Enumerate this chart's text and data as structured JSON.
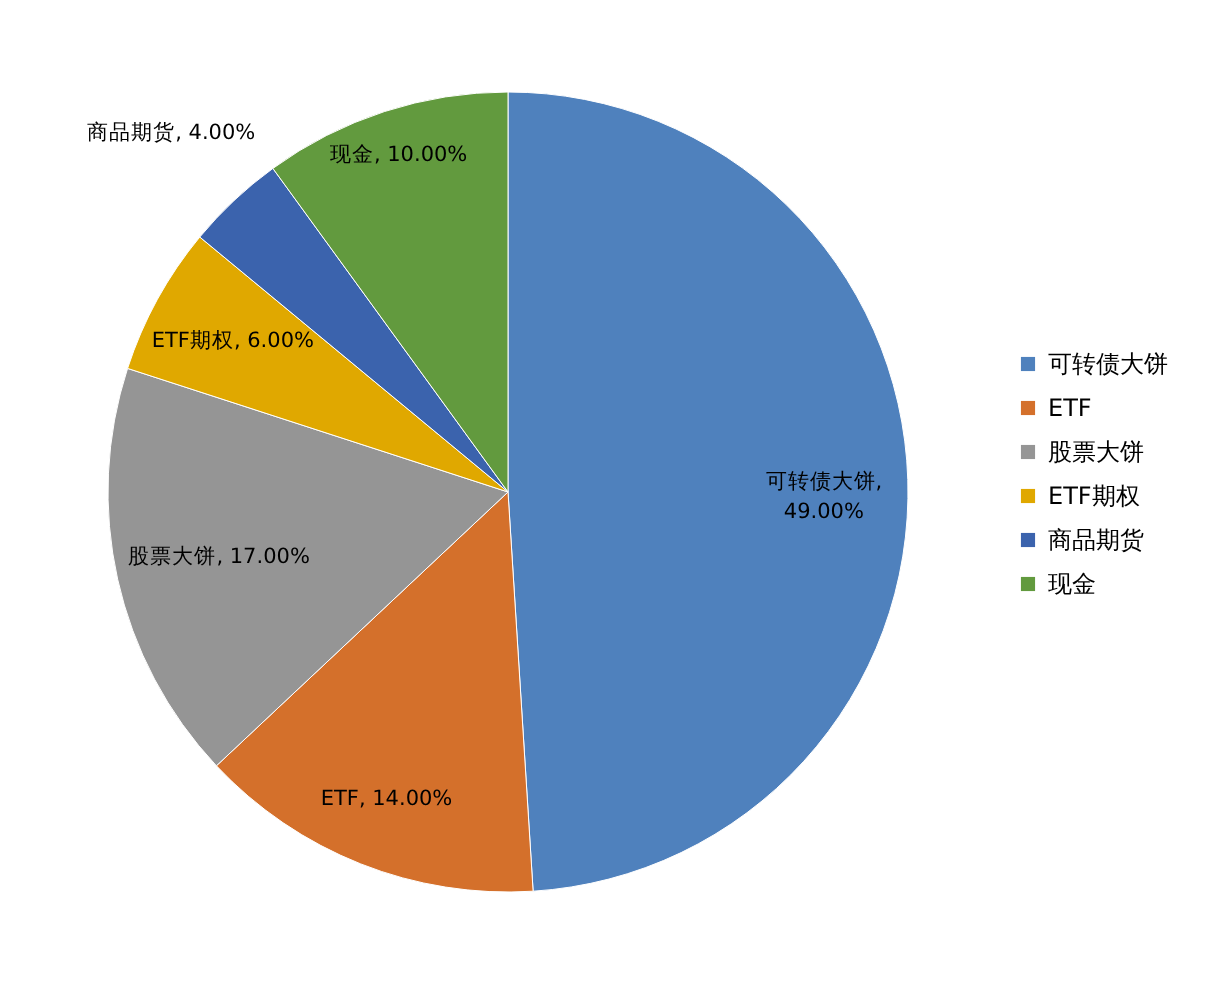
{
  "chart_data": {
    "type": "pie",
    "categories": [
      "可转债大饼",
      "ETF",
      "股票大饼",
      "ETF期权",
      "商品期货",
      "现金"
    ],
    "values": [
      49,
      14,
      17,
      6,
      4,
      10
    ],
    "value_labels": [
      "可转债大饼, 49.00%",
      "ETF, 14.00%",
      "股票大饼, 17.00%",
      "ETF期权, 6.00%",
      "商品期货, 4.00%",
      "现金, 10.00%"
    ],
    "colors": [
      "#4f81bd",
      "#d4702b",
      "#959595",
      "#e0a800",
      "#3b63ad",
      "#629a3e"
    ],
    "legend": "right"
  }
}
